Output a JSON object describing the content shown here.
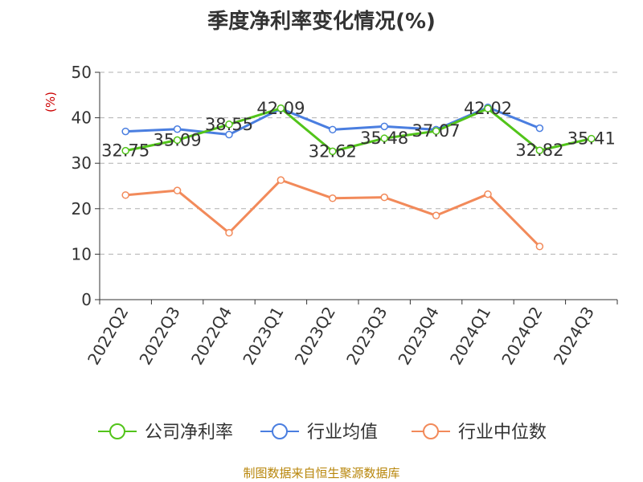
{
  "source": "制图数据来自恒生聚源数据库",
  "colors": {
    "company": "#52c41a",
    "industry_avg": "#4a7ee0",
    "industry_median": "#f28a5a",
    "axis": "#333333",
    "grid": "#b0b0b0",
    "unit": "#cc0000",
    "source": "#b8860b"
  },
  "chart_data": {
    "type": "line",
    "title": "季度净利率变化情况(%)",
    "ylabel": "(%)",
    "xlabel": "",
    "ylim": [
      0,
      50
    ],
    "yticks": [
      0,
      10,
      20,
      30,
      40,
      50
    ],
    "grid": true,
    "legend_position": "bottom",
    "categories": [
      "2022Q2",
      "2022Q3",
      "2022Q4",
      "2023Q1",
      "2023Q2",
      "2023Q3",
      "2023Q4",
      "2024Q1",
      "2024Q2",
      "2024Q3"
    ],
    "series": [
      {
        "name": "公司净利率",
        "color_key": "company",
        "values": [
          32.75,
          35.09,
          38.55,
          42.09,
          32.62,
          35.48,
          37.07,
          42.02,
          32.82,
          35.41
        ],
        "data_labels": [
          "32.75",
          "35.09",
          "38.55",
          "42.09",
          "32.62",
          "35.48",
          "37.07",
          "42.02",
          "32.82",
          "35.41"
        ]
      },
      {
        "name": "行业均值",
        "color_key": "industry_avg",
        "values": [
          37.0,
          37.5,
          36.3,
          42.0,
          37.4,
          38.1,
          37.4,
          42.3,
          37.7,
          null
        ]
      },
      {
        "name": "行业中位数",
        "color_key": "industry_median",
        "values": [
          23.0,
          24.0,
          14.7,
          26.3,
          22.3,
          22.5,
          18.5,
          23.2,
          11.7,
          null
        ]
      }
    ]
  }
}
